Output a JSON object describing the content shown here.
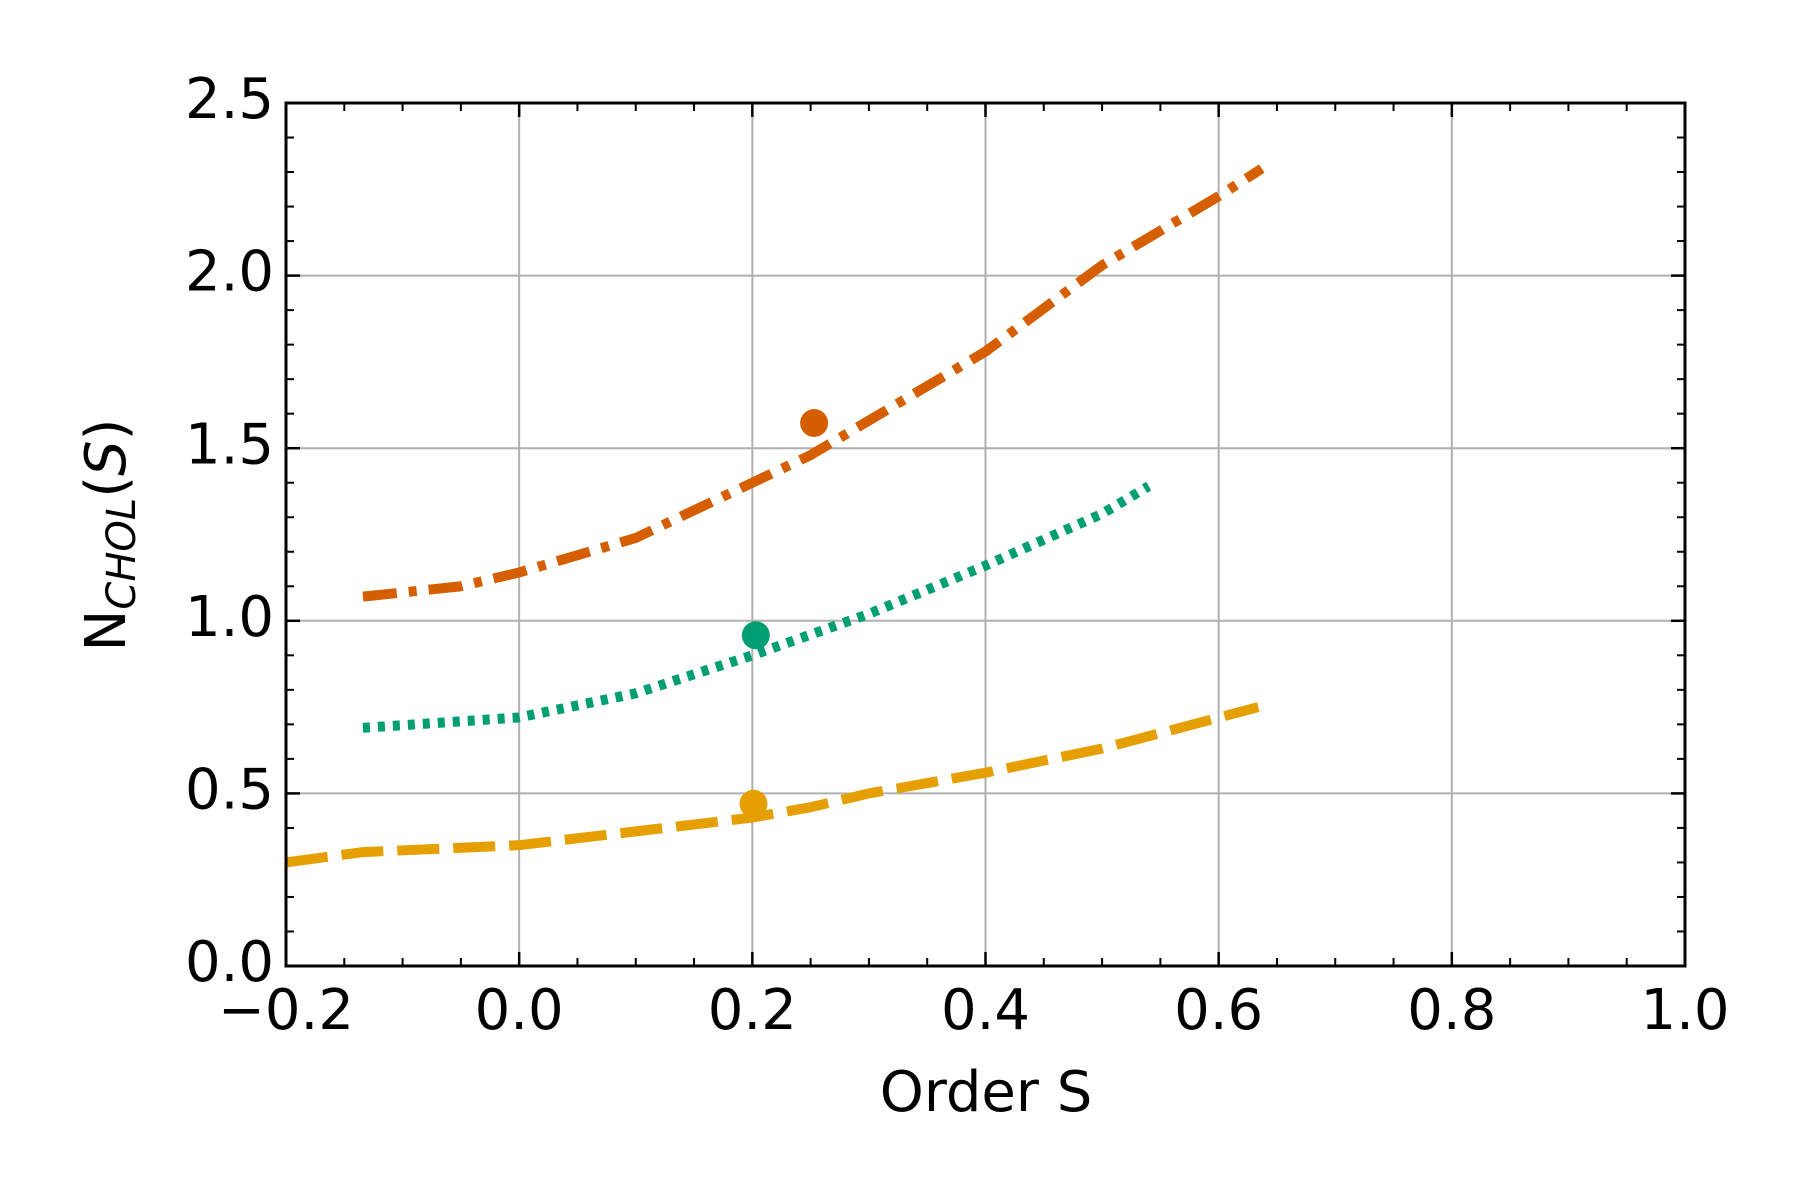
{
  "chart_data": {
    "type": "line",
    "xlabel": "Order S",
    "ylabel": {
      "base": "N",
      "subscript": "CHOL",
      "tail_open": "(",
      "tail_var": "S",
      "tail_close": ")"
    },
    "xlim": [
      -0.2,
      1.0
    ],
    "ylim": [
      0,
      2.5
    ],
    "xticks": [
      {
        "value": -0.2,
        "label": "−0.2"
      },
      {
        "value": 0,
        "label": "0.0"
      },
      0.2,
      0.4,
      0.6,
      0.8,
      {
        "value": 1.0,
        "label": "1.0"
      }
    ],
    "yticks": [
      {
        "value": 0,
        "label": "0.0"
      },
      0.5,
      {
        "value": 1.0,
        "label": "1.0"
      },
      1.5,
      {
        "value": 2.0,
        "label": "2.0"
      },
      2.5
    ],
    "xminorticks": [
      -0.15,
      -0.1,
      -0.05,
      0.05,
      0.1,
      0.15,
      0.25,
      0.3,
      0.35,
      0.45,
      0.5,
      0.55,
      0.65,
      0.7,
      0.75,
      0.85,
      0.9,
      0.95
    ],
    "yminorticks": [
      0.1,
      0.2,
      0.3,
      0.4,
      0.6,
      0.7,
      0.8,
      0.9,
      1.1,
      1.2,
      1.3,
      1.4,
      1.6,
      1.7,
      1.8,
      1.9,
      2.1,
      2.2,
      2.3,
      2.4
    ],
    "grid": true,
    "series": [
      {
        "color": "#d55e00",
        "linestyle": "dashdot",
        "x": [
          -0.134,
          -0.05,
          0.0,
          0.1,
          0.2,
          0.25,
          0.3,
          0.4,
          0.5,
          0.6,
          0.637
        ],
        "values": [
          1.07,
          1.1,
          1.14,
          1.24,
          1.4,
          1.48,
          1.58,
          1.78,
          2.03,
          2.23,
          2.31
        ]
      },
      {
        "color": "#009e73",
        "linestyle": "dotted",
        "x": [
          -0.134,
          0.0,
          0.1,
          0.2,
          0.3,
          0.4,
          0.5,
          0.54
        ],
        "values": [
          0.69,
          0.72,
          0.79,
          0.9,
          1.02,
          1.16,
          1.31,
          1.39
        ]
      },
      {
        "color": "#e69f00",
        "linestyle": "dashed",
        "x": [
          -0.2,
          -0.134,
          0.0,
          0.1,
          0.2,
          0.25,
          0.3,
          0.4,
          0.5,
          0.634
        ],
        "values": [
          0.3,
          0.33,
          0.35,
          0.39,
          0.43,
          0.46,
          0.5,
          0.56,
          0.63,
          0.75
        ]
      }
    ],
    "points": [
      {
        "x": 0.253,
        "y": 1.573,
        "color": "#d55e00"
      },
      {
        "x": 0.203,
        "y": 0.958,
        "color": "#009e73"
      },
      {
        "x": 0.201,
        "y": 0.47,
        "color": "#e69f00"
      }
    ]
  }
}
